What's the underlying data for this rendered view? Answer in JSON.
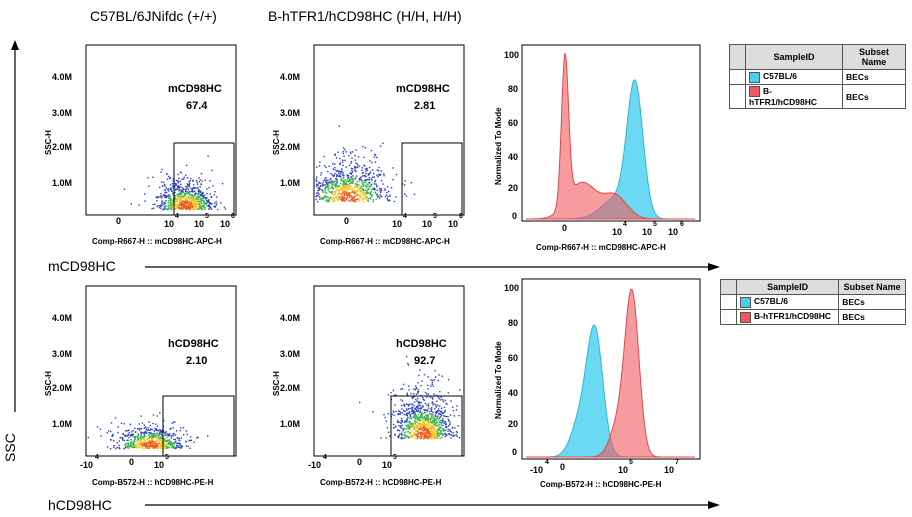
{
  "headers": {
    "wt": "C57BL/6JNifdc (+/+)",
    "hum": "B-hTFR1/hCD98HC (H/H, H/H)"
  },
  "axes": {
    "ssc": "SSC",
    "m_row": "mCD98HC",
    "h_row": "hCD98HC"
  },
  "dot_common": {
    "ylabel": "SSC-H",
    "yticks": [
      "4.0M",
      "3.0M",
      "2.0M",
      "1.0M"
    ]
  },
  "colors": {
    "blue": "#46cfee",
    "red": "#f05a5f",
    "overlap": "#8f94a8"
  },
  "chart_data": [
    {
      "type": "scatter",
      "id": "m_wt",
      "gate_label": "mCD98HC",
      "gate_value": "67.4",
      "xlabel": "Comp-R667-H :: mCD98HC-APC-H",
      "xticks": [
        "0",
        "10",
        "4",
        "10",
        "5",
        "10",
        "6",
        "10",
        "7"
      ]
    },
    {
      "type": "scatter",
      "id": "m_hum",
      "gate_label": "mCD98HC",
      "gate_value": "2.81",
      "xlabel": "Comp-R667-H :: mCD98HC-APC-H",
      "xticks": [
        "0",
        "10",
        "4",
        "10",
        "5",
        "10",
        "6",
        "10",
        "7"
      ]
    },
    {
      "type": "area",
      "id": "m_hist",
      "ylabel": "Normalized To Mode",
      "xlabel": "Comp-R667-H :: mCD98HC-APC-H",
      "yticks": [
        "100",
        "80",
        "60",
        "40",
        "20",
        "0"
      ],
      "xticks": [
        "0",
        "10",
        "4",
        "10",
        "5",
        "10",
        "6",
        "10",
        "7"
      ],
      "legend": {
        "col1": "SampleID",
        "col2": "Subset Name",
        "rows": [
          {
            "sample": "C57BL/6",
            "subset": "BECs"
          },
          {
            "sample": "B-hTFR1/hCD98HC",
            "subset": "BECs"
          }
        ]
      }
    },
    {
      "type": "scatter",
      "id": "h_wt",
      "gate_label": "hCD98HC",
      "gate_value": "2.10",
      "xlabel": "Comp-B572-H :: hCD98HC-PE-H",
      "xticks": [
        "-10",
        "4",
        "0",
        "10",
        "5"
      ]
    },
    {
      "type": "scatter",
      "id": "h_hum",
      "gate_label": "hCD98HC",
      "gate_value": "92.7",
      "xlabel": "Comp-B572-H :: hCD98HC-PE-H",
      "xticks": [
        "-10",
        "4",
        "0",
        "10",
        "5"
      ]
    },
    {
      "type": "area",
      "id": "h_hist",
      "ylabel": "Normalized To Mode",
      "xlabel": "Comp-B572-H :: hCD98HC-PE-H",
      "yticks": [
        "100",
        "80",
        "60",
        "40",
        "20",
        "0"
      ],
      "xticks": [
        "-10",
        "4",
        "0",
        "10",
        "5",
        "10",
        "7"
      ],
      "legend": {
        "col1": "SampleID",
        "col2": "Subset Name",
        "rows": [
          {
            "sample": "C57BL/6",
            "subset": "BECs"
          },
          {
            "sample": "B-hTFR1/hCD98HC",
            "subset": "BECs"
          }
        ]
      }
    }
  ]
}
